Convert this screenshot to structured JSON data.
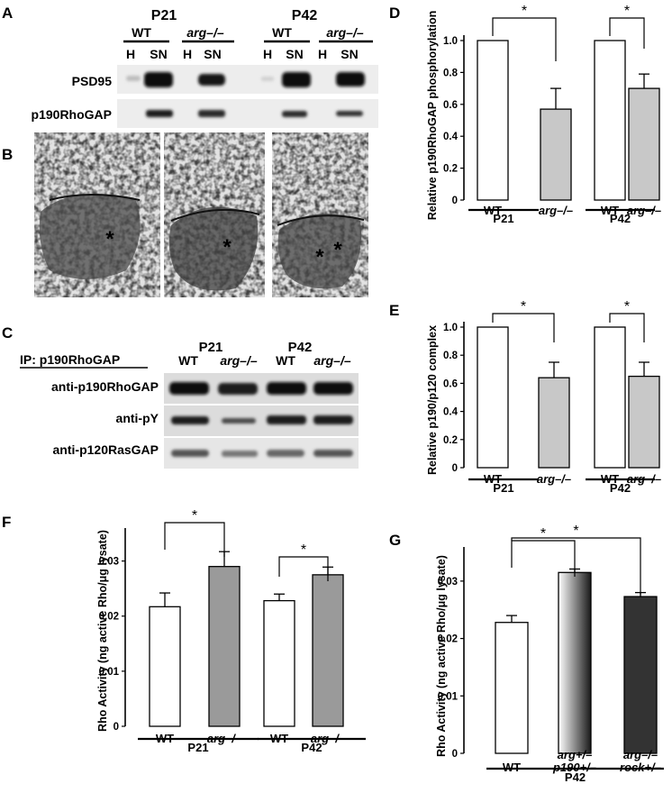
{
  "panel_letters": [
    "A",
    "B",
    "C",
    "D",
    "E",
    "F",
    "G"
  ],
  "panelA": {
    "ages": [
      "P21",
      "P42"
    ],
    "genotypes": [
      "WT",
      "arg–/–",
      "WT",
      "arg–/–"
    ],
    "fractions": [
      "H",
      "SN",
      "H",
      "SN",
      "H",
      "SN",
      "H",
      "SN"
    ],
    "rows": [
      "PSD95",
      "p190RhoGAP"
    ]
  },
  "panelB": {
    "markers": [
      "*",
      "*",
      "*",
      "*"
    ]
  },
  "panelC": {
    "ip_label": "IP: p190RhoGAP",
    "ages": [
      "P21",
      "P42"
    ],
    "genotypes": [
      "WT",
      "arg–/–",
      "WT",
      "arg–/–"
    ],
    "rows": [
      "anti-p190RhoGAP",
      "anti-pY",
      "anti-p120RasGAP"
    ]
  },
  "chart_data": [
    {
      "panel": "D",
      "type": "bar",
      "ylabel": "Relative p190RhoGAP phosphorylation",
      "ylim": [
        0,
        1.0
      ],
      "yticks": [
        "0",
        "0.2",
        "0.4",
        "0.6",
        "0.8",
        "1.0"
      ],
      "categories": [
        "WT",
        "arg–/–",
        "WT",
        "arg–/–"
      ],
      "groups": [
        "P21",
        "P42"
      ],
      "values": [
        1.0,
        0.57,
        1.0,
        0.7
      ],
      "errors": [
        0,
        0.13,
        0,
        0.09
      ],
      "fills": [
        "#ffffff",
        "#c8c8c8",
        "#ffffff",
        "#c8c8c8"
      ],
      "significance": [
        "*",
        "*"
      ]
    },
    {
      "panel": "E",
      "type": "bar",
      "ylabel": "Relative p190/p120 complex",
      "ylim": [
        0,
        1.0
      ],
      "yticks": [
        "0",
        "0.2",
        "0.4",
        "0.6",
        "0.8",
        "1.0"
      ],
      "categories": [
        "WT",
        "arg–/–",
        "WT",
        "arg–/–"
      ],
      "groups": [
        "P21",
        "P42"
      ],
      "values": [
        1.0,
        0.64,
        1.0,
        0.65
      ],
      "errors": [
        0,
        0.11,
        0,
        0.1
      ],
      "fills": [
        "#ffffff",
        "#c8c8c8",
        "#ffffff",
        "#c8c8c8"
      ],
      "significance": [
        "*",
        "*"
      ]
    },
    {
      "panel": "F",
      "type": "bar",
      "ylabel": "Rho Activity (ng active Rho/μg lysate)",
      "ylim": [
        0,
        0.035
      ],
      "yticks": [
        "0",
        "0.01",
        "0.02",
        "0.03"
      ],
      "categories": [
        "WT",
        "arg–/–",
        "WT",
        "arg–/–"
      ],
      "groups": [
        "P21",
        "P42"
      ],
      "values": [
        0.0217,
        0.029,
        0.0228,
        0.0275
      ],
      "errors": [
        0.0025,
        0.0027,
        0.0012,
        0.0014
      ],
      "fills": [
        "#ffffff",
        "#9a9a9a",
        "#ffffff",
        "#9a9a9a"
      ],
      "significance": [
        "*",
        "*"
      ]
    },
    {
      "panel": "G",
      "type": "bar",
      "ylabel": "Rho Activity (ng active Rho/μg lysate)",
      "ylim": [
        0,
        0.035
      ],
      "yticks": [
        "0",
        "0.01",
        "0.02",
        "0.03"
      ],
      "categories": [
        "WT",
        "arg+/–\np190+/–",
        "arg–/–\nrock+/–"
      ],
      "groups": [
        "P42"
      ],
      "values": [
        0.0228,
        0.0315,
        0.0273
      ],
      "errors": [
        0.0012,
        0.0006,
        0.0007
      ],
      "fills": [
        "#ffffff",
        "gradient",
        "#333333"
      ],
      "significance": [
        "*",
        "*"
      ]
    }
  ]
}
